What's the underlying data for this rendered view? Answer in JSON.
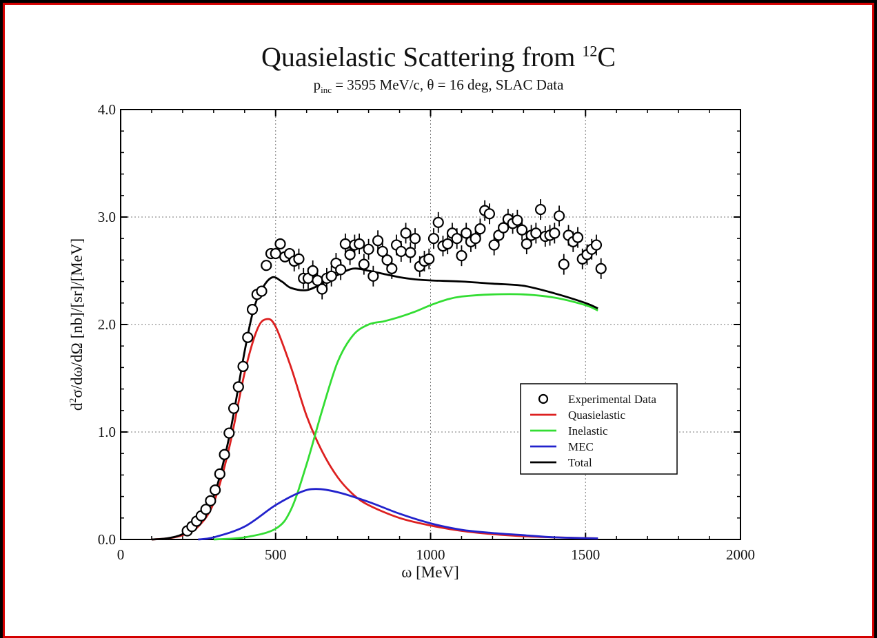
{
  "chart_data": {
    "type": "line",
    "title_prefix": "Quasielastic Scattering from ",
    "title_sup": "12",
    "title_suffix": "C",
    "subtitle_p": "p",
    "subtitle_sub": "inc",
    "subtitle_rest": " = 3595  MeV/c,  θ = 16 deg,  SLAC Data",
    "xlabel": "ω [MeV]",
    "ylabel_d": "d",
    "ylabel_sup": "2",
    "ylabel_rest": "σ/dω/dΩ  [nb]/[sr]/[MeV]",
    "xlim": [
      0,
      2000
    ],
    "ylim": [
      0,
      4.0
    ],
    "xticks": [
      0,
      500,
      1000,
      1500,
      2000
    ],
    "xtick_labels": [
      "0",
      "500",
      "1000",
      "1500",
      "2000"
    ],
    "yticks": [
      0,
      1,
      2,
      3,
      4
    ],
    "ytick_labels": [
      "0.0",
      "1.0",
      "2.0",
      "3.0",
      "4.0"
    ],
    "grid": true,
    "legend_position": "center-right",
    "legend": [
      {
        "key": "data",
        "label": "Experimental Data",
        "marker": "circle",
        "color": "#000000"
      },
      {
        "key": "qe",
        "label": "Quasielastic",
        "marker": "line",
        "color": "#dd2020"
      },
      {
        "key": "inel",
        "label": "Inelastic",
        "marker": "line",
        "color": "#33dd33"
      },
      {
        "key": "mec",
        "label": "MEC",
        "marker": "line",
        "color": "#2222cc"
      },
      {
        "key": "total",
        "label": "Total",
        "marker": "line",
        "color": "#000000"
      }
    ],
    "series": [
      {
        "key": "qe",
        "color": "#dd2020",
        "points": [
          [
            100,
            0
          ],
          [
            150,
            0.01
          ],
          [
            200,
            0.04
          ],
          [
            250,
            0.12
          ],
          [
            300,
            0.34
          ],
          [
            350,
            0.85
          ],
          [
            400,
            1.55
          ],
          [
            440,
            1.95
          ],
          [
            470,
            2.05
          ],
          [
            500,
            1.98
          ],
          [
            550,
            1.6
          ],
          [
            600,
            1.15
          ],
          [
            650,
            0.82
          ],
          [
            700,
            0.58
          ],
          [
            750,
            0.42
          ],
          [
            800,
            0.32
          ],
          [
            900,
            0.2
          ],
          [
            1000,
            0.13
          ],
          [
            1100,
            0.08
          ],
          [
            1200,
            0.05
          ],
          [
            1300,
            0.03
          ],
          [
            1400,
            0.02
          ],
          [
            1540,
            0.01
          ]
        ]
      },
      {
        "key": "inel",
        "color": "#33dd33",
        "points": [
          [
            300,
            0
          ],
          [
            400,
            0.02
          ],
          [
            500,
            0.1
          ],
          [
            550,
            0.28
          ],
          [
            600,
            0.7
          ],
          [
            650,
            1.2
          ],
          [
            700,
            1.65
          ],
          [
            750,
            1.9
          ],
          [
            800,
            2.0
          ],
          [
            850,
            2.03
          ],
          [
            900,
            2.07
          ],
          [
            950,
            2.12
          ],
          [
            1000,
            2.18
          ],
          [
            1050,
            2.23
          ],
          [
            1100,
            2.26
          ],
          [
            1200,
            2.28
          ],
          [
            1300,
            2.28
          ],
          [
            1400,
            2.25
          ],
          [
            1500,
            2.18
          ],
          [
            1540,
            2.13
          ]
        ]
      },
      {
        "key": "mec",
        "color": "#2222cc",
        "points": [
          [
            250,
            0
          ],
          [
            300,
            0.02
          ],
          [
            400,
            0.12
          ],
          [
            500,
            0.32
          ],
          [
            580,
            0.44
          ],
          [
            630,
            0.47
          ],
          [
            700,
            0.44
          ],
          [
            800,
            0.35
          ],
          [
            900,
            0.24
          ],
          [
            1000,
            0.15
          ],
          [
            1100,
            0.09
          ],
          [
            1200,
            0.06
          ],
          [
            1300,
            0.04
          ],
          [
            1400,
            0.02
          ],
          [
            1540,
            0.01
          ]
        ]
      },
      {
        "key": "total",
        "color": "#000000",
        "points": [
          [
            100,
            0
          ],
          [
            150,
            0.01
          ],
          [
            200,
            0.05
          ],
          [
            250,
            0.15
          ],
          [
            300,
            0.4
          ],
          [
            350,
            0.95
          ],
          [
            400,
            1.75
          ],
          [
            430,
            2.15
          ],
          [
            460,
            2.35
          ],
          [
            490,
            2.44
          ],
          [
            520,
            2.4
          ],
          [
            550,
            2.34
          ],
          [
            600,
            2.32
          ],
          [
            650,
            2.38
          ],
          [
            700,
            2.46
          ],
          [
            750,
            2.52
          ],
          [
            800,
            2.5
          ],
          [
            850,
            2.47
          ],
          [
            900,
            2.44
          ],
          [
            950,
            2.42
          ],
          [
            1000,
            2.41
          ],
          [
            1100,
            2.4
          ],
          [
            1200,
            2.38
          ],
          [
            1300,
            2.36
          ],
          [
            1400,
            2.29
          ],
          [
            1500,
            2.2
          ],
          [
            1540,
            2.15
          ]
        ]
      }
    ],
    "data_points": [
      [
        215,
        0.08
      ],
      [
        230,
        0.12
      ],
      [
        245,
        0.17
      ],
      [
        260,
        0.22
      ],
      [
        275,
        0.28
      ],
      [
        290,
        0.36
      ],
      [
        305,
        0.46
      ],
      [
        320,
        0.61
      ],
      [
        335,
        0.79
      ],
      [
        350,
        0.99
      ],
      [
        365,
        1.22
      ],
      [
        380,
        1.42
      ],
      [
        395,
        1.61
      ],
      [
        410,
        1.88
      ],
      [
        425,
        2.14
      ],
      [
        440,
        2.28
      ],
      [
        455,
        2.31
      ],
      [
        470,
        2.55
      ],
      [
        485,
        2.66
      ],
      [
        500,
        2.66
      ],
      [
        515,
        2.75
      ],
      [
        530,
        2.63
      ],
      [
        545,
        2.66
      ],
      [
        560,
        2.59
      ],
      [
        575,
        2.61
      ],
      [
        590,
        2.43
      ],
      [
        605,
        2.43
      ],
      [
        620,
        2.5
      ],
      [
        635,
        2.41
      ],
      [
        650,
        2.33
      ],
      [
        665,
        2.43
      ],
      [
        680,
        2.45
      ],
      [
        695,
        2.57
      ],
      [
        710,
        2.51
      ],
      [
        725,
        2.75
      ],
      [
        740,
        2.65
      ],
      [
        755,
        2.74
      ],
      [
        770,
        2.75
      ],
      [
        785,
        2.56
      ],
      [
        800,
        2.7
      ],
      [
        815,
        2.45
      ],
      [
        830,
        2.78
      ],
      [
        845,
        2.68
      ],
      [
        860,
        2.6
      ],
      [
        875,
        2.52
      ],
      [
        890,
        2.74
      ],
      [
        905,
        2.68
      ],
      [
        920,
        2.85
      ],
      [
        935,
        2.67
      ],
      [
        950,
        2.8
      ],
      [
        965,
        2.54
      ],
      [
        980,
        2.59
      ],
      [
        995,
        2.61
      ],
      [
        1010,
        2.8
      ],
      [
        1025,
        2.95
      ],
      [
        1040,
        2.73
      ],
      [
        1055,
        2.75
      ],
      [
        1070,
        2.85
      ],
      [
        1085,
        2.8
      ],
      [
        1100,
        2.64
      ],
      [
        1115,
        2.85
      ],
      [
        1130,
        2.77
      ],
      [
        1145,
        2.8
      ],
      [
        1160,
        2.89
      ],
      [
        1175,
        3.06
      ],
      [
        1190,
        3.03
      ],
      [
        1205,
        2.74
      ],
      [
        1220,
        2.83
      ],
      [
        1235,
        2.9
      ],
      [
        1250,
        2.98
      ],
      [
        1265,
        2.94
      ],
      [
        1280,
        2.97
      ],
      [
        1295,
        2.88
      ],
      [
        1310,
        2.75
      ],
      [
        1325,
        2.83
      ],
      [
        1340,
        2.85
      ],
      [
        1355,
        3.07
      ],
      [
        1370,
        2.82
      ],
      [
        1385,
        2.83
      ],
      [
        1400,
        2.85
      ],
      [
        1415,
        3.01
      ],
      [
        1430,
        2.56
      ],
      [
        1445,
        2.83
      ],
      [
        1460,
        2.77
      ],
      [
        1475,
        2.81
      ],
      [
        1490,
        2.61
      ],
      [
        1505,
        2.65
      ],
      [
        1520,
        2.7
      ],
      [
        1535,
        2.74
      ],
      [
        1550,
        2.52
      ]
    ]
  }
}
